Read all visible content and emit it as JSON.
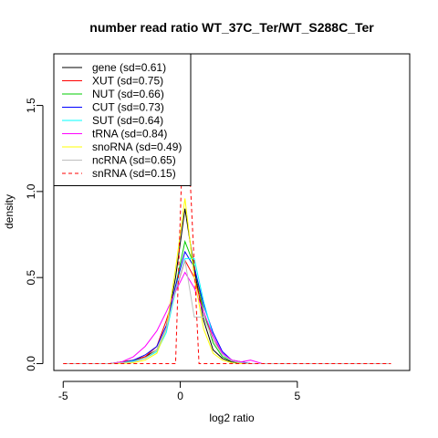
{
  "chart_data": {
    "type": "line",
    "title": "number read ratio WT_37C_Ter/WT_S288C_Ter",
    "xlabel": "log2 ratio",
    "ylabel": "density",
    "xlim": [
      -5.4,
      9.8
    ],
    "ylim": [
      -0.04,
      1.8
    ],
    "x_ticks": [
      -5,
      0,
      5
    ],
    "y_ticks": [
      0.0,
      0.5,
      1.0,
      1.5
    ],
    "x_tick_labels": [
      "-5",
      "0",
      "5"
    ],
    "y_tick_labels": [
      "0.0",
      "0.5",
      "1.0",
      "1.5"
    ],
    "grid": false,
    "legend_position": "top-left",
    "series": [
      {
        "name": "gene (sd=0.61)",
        "color": "#000000",
        "dash": "solid",
        "x": [
          -5,
          -3,
          -2.5,
          -2,
          -1.5,
          -1,
          -0.6,
          -0.2,
          0.2,
          0.6,
          1,
          1.4,
          1.8,
          2.2,
          2.6,
          3,
          3.5,
          9
        ],
        "y": [
          0,
          0,
          0.01,
          0.02,
          0.04,
          0.08,
          0.2,
          0.5,
          0.9,
          0.55,
          0.25,
          0.08,
          0.03,
          0.01,
          0.005,
          0,
          0,
          0
        ]
      },
      {
        "name": "XUT (sd=0.75)",
        "color": "#ff0000",
        "dash": "solid",
        "x": [
          -5,
          -3,
          -2.5,
          -2,
          -1.5,
          -1,
          -0.6,
          -0.2,
          0.2,
          0.6,
          1,
          1.4,
          1.8,
          2.2,
          2.6,
          3,
          3.5,
          9
        ],
        "y": [
          0,
          0,
          0.01,
          0.02,
          0.04,
          0.1,
          0.25,
          0.42,
          0.6,
          0.5,
          0.3,
          0.14,
          0.06,
          0.02,
          0.01,
          0,
          0,
          0
        ]
      },
      {
        "name": "NUT (sd=0.66)",
        "color": "#00cd00",
        "dash": "solid",
        "x": [
          -5,
          -3,
          -2.5,
          -2,
          -1.5,
          -1,
          -0.6,
          -0.2,
          0.2,
          0.6,
          1,
          1.4,
          1.8,
          2.2,
          2.6,
          3,
          3.5,
          9
        ],
        "y": [
          0,
          0,
          0.005,
          0.015,
          0.03,
          0.08,
          0.2,
          0.45,
          0.71,
          0.57,
          0.3,
          0.12,
          0.04,
          0.015,
          0.005,
          0,
          0,
          0
        ]
      },
      {
        "name": "CUT (sd=0.73)",
        "color": "#0000ff",
        "dash": "solid",
        "x": [
          -5,
          -3,
          -2.5,
          -2,
          -1.5,
          -1,
          -0.6,
          -0.2,
          0.2,
          0.6,
          1,
          1.4,
          1.8,
          2.2,
          2.6,
          3,
          3.5,
          9
        ],
        "y": [
          0,
          0,
          0.005,
          0.02,
          0.05,
          0.1,
          0.22,
          0.45,
          0.65,
          0.56,
          0.34,
          0.18,
          0.07,
          0.02,
          0.01,
          0,
          0,
          0
        ]
      },
      {
        "name": "SUT (sd=0.64)",
        "color": "#00ffff",
        "dash": "solid",
        "x": [
          -5,
          -3,
          -2.5,
          -2,
          -1.5,
          -1,
          -0.6,
          -0.2,
          0.2,
          0.6,
          1,
          1.4,
          1.8,
          2.2,
          2.6,
          3,
          3.5,
          9
        ],
        "y": [
          0,
          0,
          0.005,
          0.015,
          0.03,
          0.07,
          0.18,
          0.42,
          0.61,
          0.61,
          0.36,
          0.16,
          0.06,
          0.015,
          0.005,
          0,
          0,
          0
        ]
      },
      {
        "name": "tRNA (sd=0.84)",
        "color": "#ff00ff",
        "dash": "solid",
        "x": [
          -5,
          -3,
          -2.5,
          -2,
          -1.5,
          -1,
          -0.6,
          -0.2,
          0.2,
          0.6,
          1,
          1.4,
          1.8,
          2.2,
          2.6,
          3,
          3.5,
          9
        ],
        "y": [
          0,
          0,
          0.01,
          0.04,
          0.1,
          0.19,
          0.3,
          0.42,
          0.53,
          0.44,
          0.3,
          0.16,
          0.06,
          0.02,
          0.01,
          0.02,
          0,
          0
        ]
      },
      {
        "name": "snoRNA (sd=0.49)",
        "color": "#ffff00",
        "dash": "solid",
        "x": [
          -5,
          -3,
          -2.5,
          -2,
          -1.5,
          -1,
          -0.6,
          -0.2,
          0.2,
          0.6,
          1,
          1.4,
          1.8,
          2.2,
          2.6,
          3,
          3.5,
          9
        ],
        "y": [
          0,
          0,
          0,
          0.005,
          0.02,
          0.06,
          0.2,
          0.55,
          0.96,
          0.5,
          0.2,
          0.06,
          0.02,
          0.005,
          0,
          0,
          0,
          0
        ]
      },
      {
        "name": "ncRNA (sd=0.65)",
        "color": "#bebebe",
        "dash": "solid",
        "x": [
          -5,
          -3,
          -2.5,
          -2,
          -1.5,
          -1,
          -0.6,
          -0.2,
          0.2,
          0.6,
          1,
          1.4,
          1.8,
          2.2,
          2.6,
          3,
          3.5,
          9
        ],
        "y": [
          0,
          0,
          0.005,
          0.01,
          0.03,
          0.08,
          0.2,
          0.43,
          0.6,
          0.27,
          0.27,
          0.14,
          0.05,
          0.015,
          0.005,
          0,
          0,
          0
        ]
      },
      {
        "name": "snRNA (sd=0.15)",
        "color": "#ff0000",
        "dash": "dashed",
        "x": [
          -5,
          -0.2,
          0.2,
          0.8,
          9
        ],
        "y": [
          0,
          0,
          1.7,
          0,
          0
        ]
      }
    ]
  }
}
